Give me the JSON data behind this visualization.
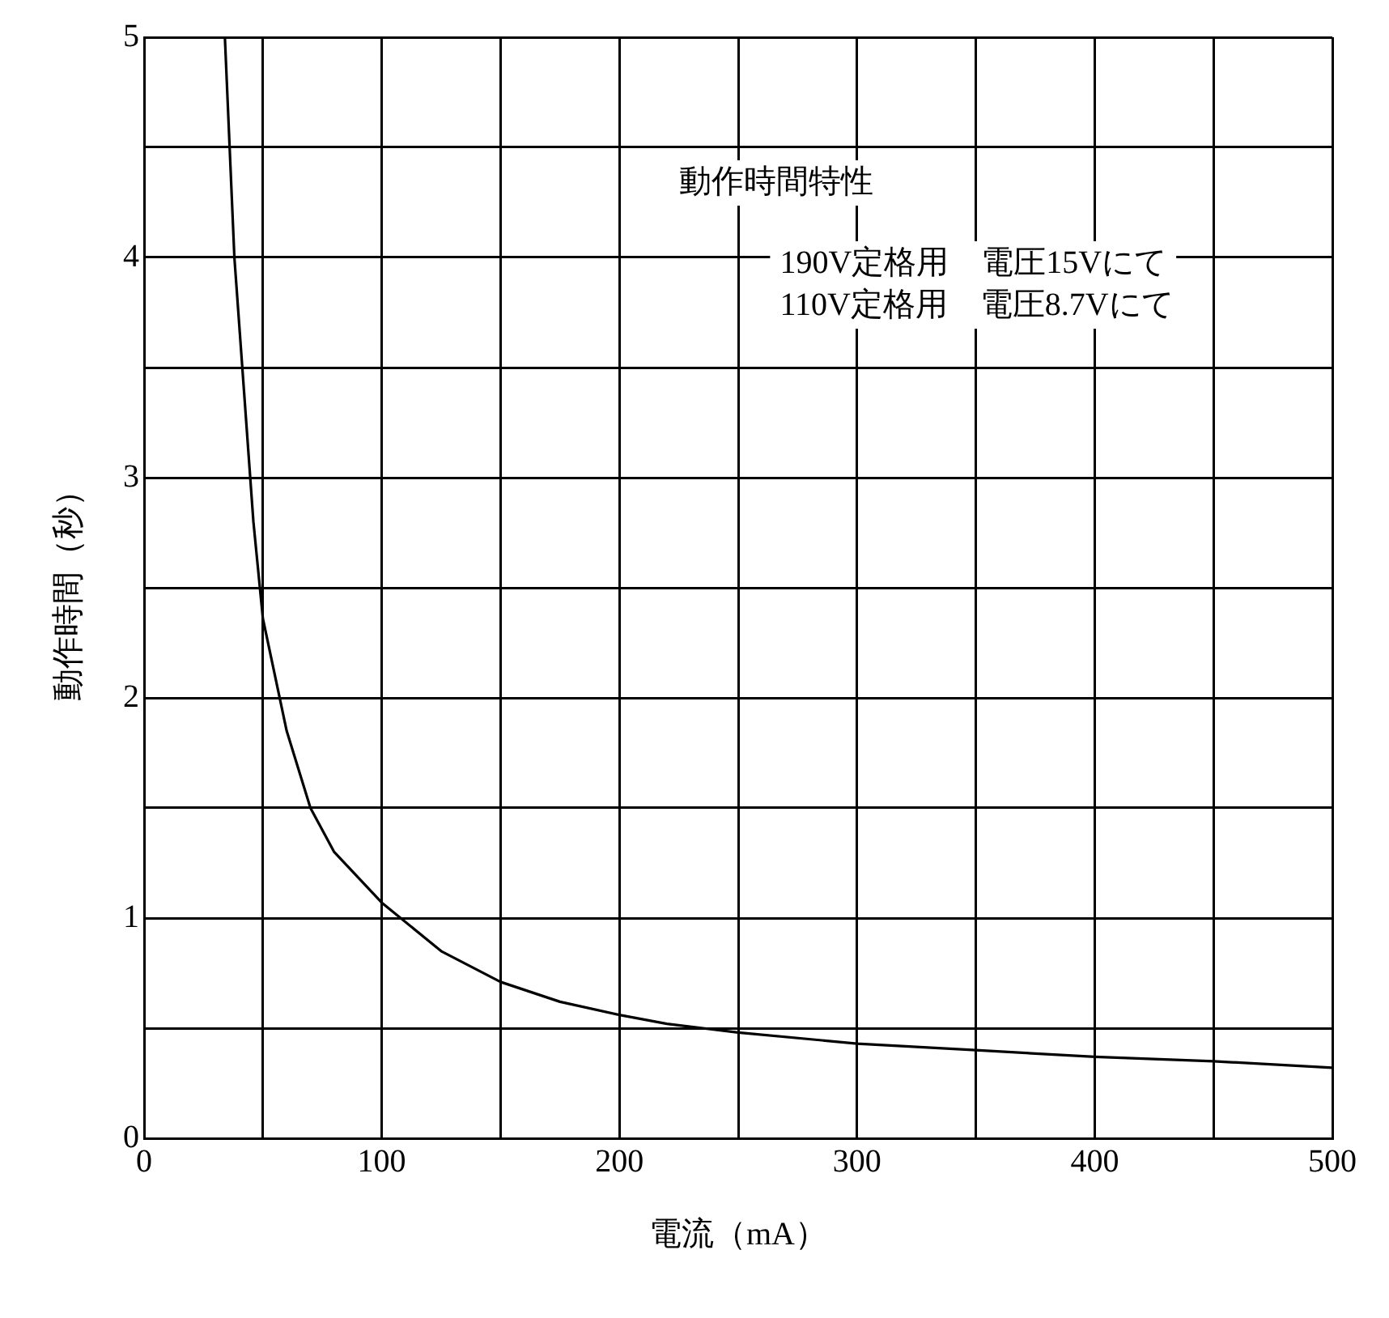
{
  "chart_data": {
    "type": "line",
    "title": "動作時間特性",
    "annotations": [
      "190V定格用　電圧15Vにて",
      "110V定格用　電圧8.7Vにて"
    ],
    "xlabel": "電流（mA）",
    "ylabel": "動作時間（秒）",
    "series": [
      {
        "color": "#000000",
        "x": [
          34,
          38,
          42,
          46,
          50,
          60,
          70,
          80,
          100,
          125,
          150,
          175,
          200,
          220,
          250,
          300,
          350,
          400,
          450,
          500
        ],
        "values": [
          5,
          4,
          3.4,
          2.8,
          2.36,
          1.85,
          1.5,
          1.3,
          1.07,
          0.85,
          0.71,
          0.62,
          0.56,
          0.52,
          0.48,
          0.43,
          0.4,
          0.37,
          0.35,
          0.32
        ]
      }
    ],
    "xlim": [
      0,
      500
    ],
    "ylim": [
      0,
      5
    ],
    "xticks": [
      0,
      {
        "value": 50,
        "label": null
      },
      100,
      {
        "value": 150,
        "label": null
      },
      200,
      {
        "value": 250,
        "label": null
      },
      300,
      {
        "value": 350,
        "label": null
      },
      400,
      {
        "value": 450,
        "label": null
      },
      500
    ],
    "yticks": [
      0,
      {
        "value": 0.5,
        "label": null
      },
      1,
      {
        "value": 1.5,
        "label": null
      },
      2,
      {
        "value": 2.5,
        "label": null
      },
      3,
      {
        "value": 3.5,
        "label": null
      },
      4,
      {
        "value": 4.5,
        "label": null
      },
      5
    ],
    "grid": true,
    "legend": false,
    "marker": "none",
    "line_style": "solid"
  }
}
